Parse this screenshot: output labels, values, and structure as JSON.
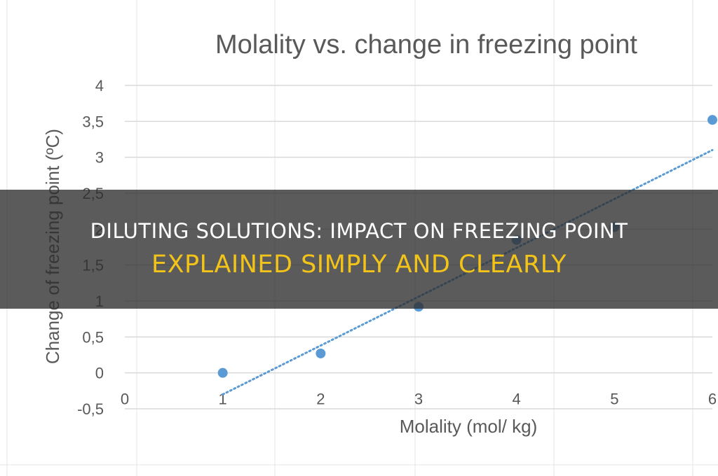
{
  "banner": {
    "line1": "DILUTING SOLUTIONS: IMPACT ON FREEZING POINT",
    "line2": "EXPLAINED SIMPLY AND CLEARLY"
  },
  "colors": {
    "point": "#5b9bd5",
    "trendline": "#5b9bd5",
    "grid": "#d9d9d9",
    "text": "#595959",
    "banner_accent": "#f2c318"
  },
  "chart_data": {
    "type": "scatter",
    "title": "Molality vs. change in freezing point",
    "xlabel": "Molality (mol/ kg)",
    "ylabel": "Change of freezing point (ºC)",
    "xlim": [
      0,
      6
    ],
    "ylim": [
      -0.5,
      4
    ],
    "xticks": [
      "0",
      "1",
      "2",
      "3",
      "4",
      "5",
      "6"
    ],
    "yticks": [
      "-0,5",
      "0",
      "0,5",
      "1",
      "1,5",
      "2",
      "2,5",
      "3",
      "3,5",
      "4"
    ],
    "grid": "horizontal",
    "trendline": {
      "type": "linear",
      "style": "dotted",
      "x": [
        1,
        6
      ],
      "y": [
        -0.3,
        3.1
      ]
    },
    "series": [
      {
        "x": [
          1,
          2,
          3,
          4,
          5,
          6
        ],
        "y": [
          0.0,
          0.27,
          0.92,
          1.85,
          2.03,
          3.52
        ]
      }
    ]
  }
}
